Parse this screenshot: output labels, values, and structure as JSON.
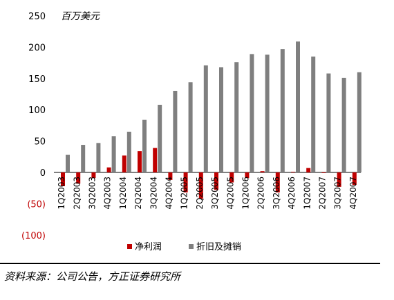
{
  "chart_data": {
    "type": "bar",
    "unit_label": "百万美元",
    "categories": [
      "1Q2003",
      "2Q2003",
      "3Q2003",
      "4Q2003",
      "1Q2004",
      "2Q2004",
      "3Q2004",
      "4Q2004",
      "1Q2005",
      "2Q2005",
      "3Q2005",
      "4Q2005",
      "1Q2006",
      "2Q2006",
      "3Q2006",
      "4Q2006",
      "1Q2007",
      "2Q2007",
      "3Q2007",
      "4Q2007"
    ],
    "series": [
      {
        "name": "净利润",
        "color": "#c00000",
        "values": [
          -22,
          -18,
          -9,
          8,
          27,
          34,
          39,
          -12,
          -32,
          -42,
          -28,
          -16,
          -9,
          2,
          -32,
          1,
          7,
          -1,
          -23,
          -20
        ]
      },
      {
        "name": "折旧及摊销",
        "color": "#7f7f7f",
        "values": [
          28,
          44,
          47,
          58,
          65,
          84,
          108,
          130,
          144,
          171,
          168,
          176,
          189,
          188,
          197,
          209,
          185,
          158,
          151,
          160
        ]
      }
    ],
    "ylim": [
      -100,
      250
    ],
    "yticks": [
      -100,
      -50,
      0,
      50,
      100,
      150,
      200,
      250
    ],
    "ytick_labels": [
      "(100)",
      "(50)",
      "0",
      "50",
      "100",
      "150",
      "200",
      "250"
    ],
    "legend_position": "bottom",
    "grid": false
  },
  "source_note": "资料来源：公司公告，方正证券研究所"
}
